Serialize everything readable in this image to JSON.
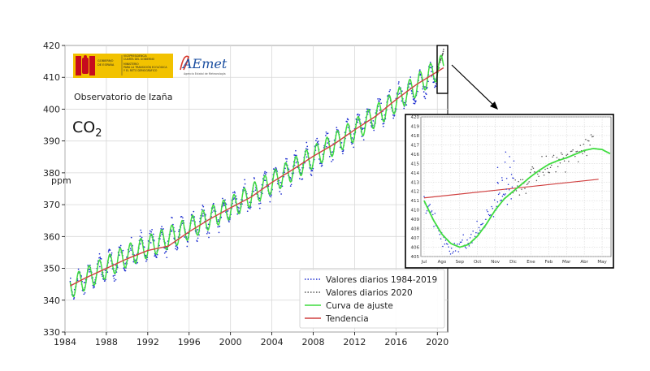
{
  "header": {
    "ministry_line1": "VICEPRESIDENCIA",
    "ministry_line2": "CUARTA DEL GOBIERNO",
    "ministry_line3": "MINISTERIO",
    "ministry_line4": "PARA LA TRANSICIÓN ECOLÓGICA",
    "ministry_line5": "Y EL RETO DEMOGRÁFICO",
    "gov_line1": "GOBIERNO",
    "gov_line2": "DE ESPAÑA",
    "aemet_logo": "AEmet",
    "aemet_sub": "Agencia Estatal de Meteorología",
    "observatory": "Observatorio de Izaña",
    "gas_main": "CO",
    "gas_sub": "2"
  },
  "colors": {
    "daily_1984_2019": "#1f2fd0",
    "daily_2020": "#555555",
    "fit_curve": "#3fdc3f",
    "trend": "#d04040",
    "logo_yellow": "#f2c200",
    "logo_red": "#c60b1e"
  },
  "chart_data": [
    {
      "type": "scatter",
      "title": "",
      "xlabel": "",
      "ylabel": "ppm",
      "xlim": [
        1984,
        2021
      ],
      "ylim": [
        330,
        420
      ],
      "x_ticks": [
        1984,
        1988,
        1992,
        1996,
        2000,
        2004,
        2008,
        2012,
        2016,
        2020
      ],
      "y_ticks": [
        330,
        340,
        350,
        360,
        370,
        380,
        390,
        400,
        410,
        420
      ],
      "grid": true,
      "legend_position": "lower-right",
      "legend": [
        "Valores diarios 1984-2019",
        "Valores diarios 2020",
        "Curva de ajuste",
        "Tendencia"
      ],
      "series": [
        {
          "name": "Valores diarios 1984-2019",
          "style": "dots",
          "x": [
            1984.5,
            1990,
            1995,
            2000,
            2005,
            2010,
            2015,
            2019.9
          ],
          "y": [
            344,
            354,
            361,
            369,
            379,
            389,
            400,
            411
          ]
        },
        {
          "name": "Valores diarios 2020",
          "style": "dots",
          "x": [
            2020.0,
            2020.3,
            2020.6
          ],
          "y": [
            412,
            416,
            418
          ]
        },
        {
          "name": "Curva de ajuste",
          "style": "line",
          "x": [
            1984.5,
            1990,
            1995,
            2000,
            2005,
            2010,
            2015,
            2020.6
          ],
          "y": [
            344,
            354,
            361,
            369,
            379,
            389,
            400,
            414
          ]
        },
        {
          "name": "Tendencia",
          "style": "line",
          "x": [
            1984.5,
            1986,
            1988,
            1990,
            1992,
            1994,
            1996,
            1998,
            2000,
            2002,
            2004,
            2006,
            2008,
            2010,
            2012,
            2014,
            2016,
            2018,
            2020.6
          ],
          "y": [
            344.5,
            347.0,
            350.0,
            353.0,
            355.6,
            357.0,
            361.5,
            365.5,
            369.0,
            372.4,
            377.0,
            381.0,
            385.2,
            389.0,
            393.5,
            397.7,
            403.0,
            407.8,
            413.0
          ]
        }
      ],
      "seasonal_amplitude_ppm": 3.5
    },
    {
      "type": "scatter",
      "title": "",
      "xlim": [
        0,
        10.5
      ],
      "ylim": [
        405,
        420
      ],
      "x_tick_labels": [
        "Jul",
        "Ago",
        "Sep",
        "Oct",
        "Nov",
        "Dic",
        "Ene",
        "Feb",
        "Mar",
        "Abr",
        "May"
      ],
      "y_ticks": [
        405,
        406,
        407,
        408,
        409,
        410,
        411,
        412,
        413,
        414,
        415,
        416,
        417,
        418,
        419,
        420
      ],
      "grid": true,
      "series": [
        {
          "name": "Valores diarios 1984-2019",
          "style": "dots",
          "x": [
            0.0,
            0.5,
            1.0,
            1.5,
            2.0,
            2.5,
            3.0,
            3.5,
            4.0,
            4.5,
            5.0
          ],
          "y": [
            411.0,
            409.2,
            407.0,
            406.0,
            406.2,
            406.5,
            407.8,
            409.0,
            410.5,
            411.8,
            412.0
          ]
        },
        {
          "name": "Valores diarios 2020",
          "style": "dots",
          "x": [
            5.0,
            5.5,
            6.0,
            6.5,
            7.0,
            7.5,
            8.0,
            8.5,
            9.0,
            9.5
          ],
          "y": [
            412.0,
            412.6,
            413.5,
            414.2,
            414.7,
            415.2,
            415.6,
            416.0,
            416.6,
            417.5
          ]
        },
        {
          "name": "Curva de ajuste",
          "style": "line",
          "x": [
            0,
            0.5,
            1,
            1.5,
            2,
            2.5,
            3,
            3.5,
            4,
            4.5,
            5,
            5.5,
            6,
            6.5,
            7,
            7.5,
            8,
            8.5,
            9,
            9.5,
            10,
            10.5
          ],
          "y": [
            411.0,
            409.0,
            407.4,
            406.4,
            406.0,
            406.3,
            407.2,
            408.5,
            410.0,
            411.2,
            412.0,
            412.8,
            413.6,
            414.3,
            414.9,
            415.3,
            415.6,
            416.0,
            416.4,
            416.6,
            416.5,
            416.0
          ]
        },
        {
          "name": "Tendencia",
          "style": "line",
          "x": [
            0,
            9.8
          ],
          "y": [
            411.3,
            413.3
          ]
        }
      ]
    }
  ]
}
